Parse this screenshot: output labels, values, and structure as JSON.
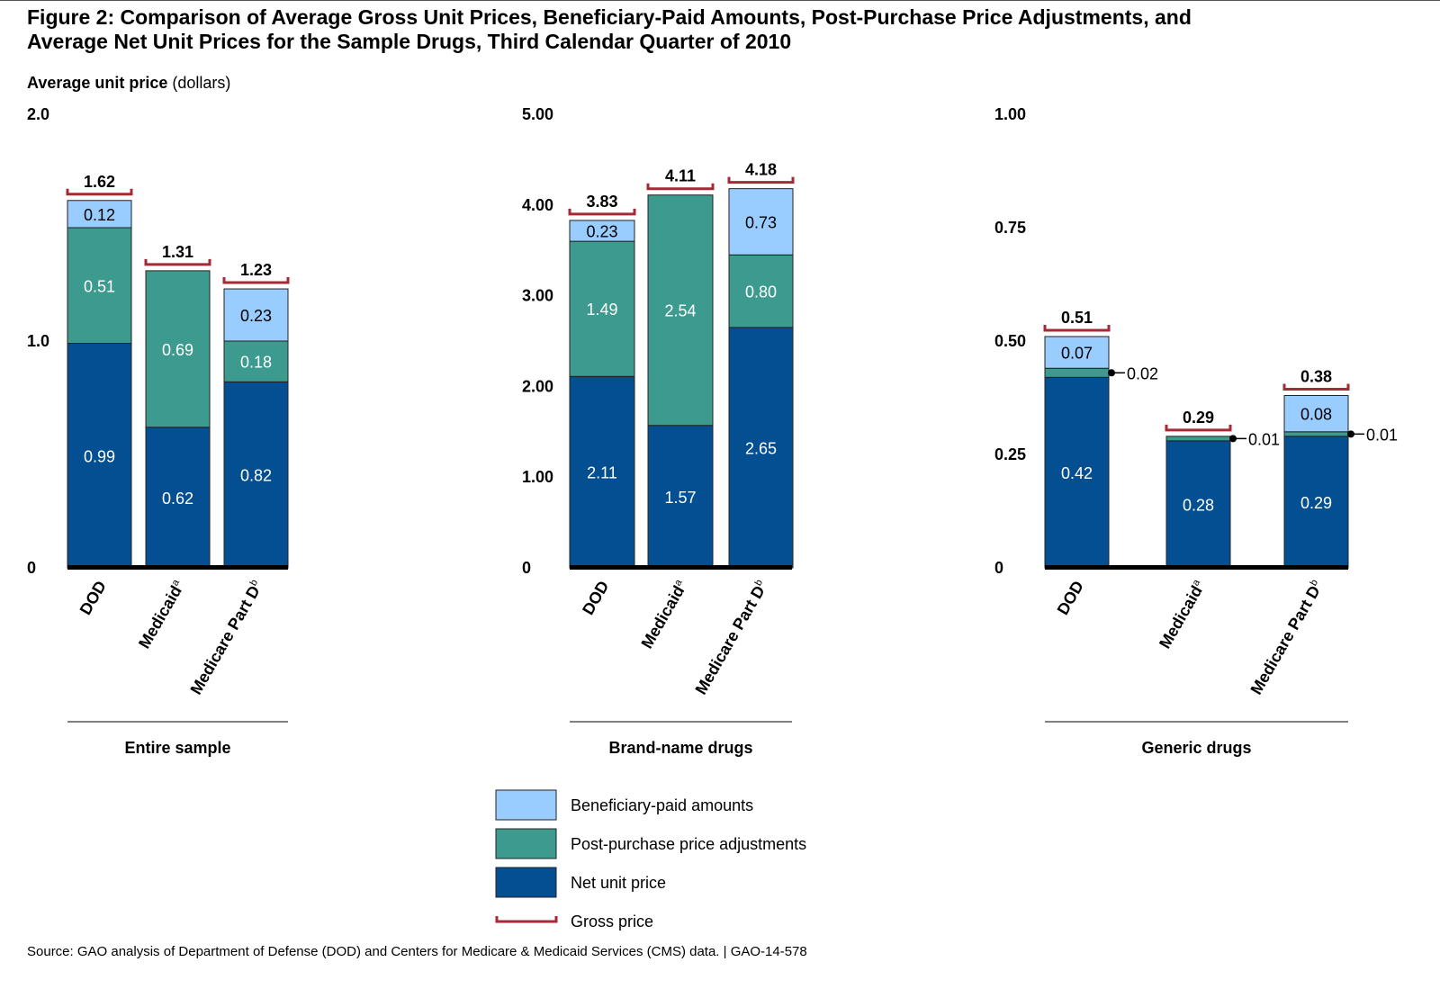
{
  "title_line1": "Figure 2: Comparison of Average Gross Unit Prices, Beneficiary-Paid Amounts, Post-Purchase Price Adjustments, and",
  "title_line2": "Average Net Unit Prices for the Sample Drugs, Third Calendar Quarter of 2010",
  "ylabel_bold": "Average unit price",
  "ylabel_unit": "(dollars)",
  "source": "Source: GAO analysis of Department of Defense (DOD) and Centers for Medicare & Medicaid Services (CMS) data.  |  GAO-14-578",
  "colors": {
    "beneficiary": "#99ccff",
    "adjustment": "#3d9a8e",
    "net": "#044f91",
    "gross": "#a52a35"
  },
  "chart_data": [
    {
      "type": "bar",
      "stacked": true,
      "title": "Entire sample",
      "ylim": [
        0,
        2.0
      ],
      "yticks": [
        "0",
        "1.0",
        "2.0"
      ],
      "ytick_values": [
        0,
        1,
        2
      ],
      "categories": [
        {
          "name": "DOD",
          "note": ""
        },
        {
          "name": "Medicaid",
          "note": "a"
        },
        {
          "name": "Medicare Part D",
          "note": "b"
        }
      ],
      "net": [
        0.99,
        0.62,
        0.82
      ],
      "net_labels": [
        "0.99",
        "0.62",
        "0.82"
      ],
      "adjustment": [
        0.51,
        0.69,
        0.18
      ],
      "adjustment_labels": [
        "0.51",
        "0.69",
        "0.18"
      ],
      "beneficiary": [
        0.12,
        0,
        0.23
      ],
      "beneficiary_labels": [
        "0.12",
        "",
        "0.23"
      ],
      "gross": [
        1.62,
        1.31,
        1.23
      ],
      "gross_labels": [
        "1.62",
        "1.31",
        "1.23"
      ],
      "callouts": [
        "",
        "",
        ""
      ]
    },
    {
      "type": "bar",
      "stacked": true,
      "title": "Brand-name drugs",
      "ylim": [
        0,
        5.0
      ],
      "yticks": [
        "0",
        "1.00",
        "2.00",
        "3.00",
        "4.00",
        "5.00"
      ],
      "ytick_values": [
        0,
        1,
        2,
        3,
        4,
        5
      ],
      "categories": [
        {
          "name": "DOD",
          "note": ""
        },
        {
          "name": "Medicaid",
          "note": "a"
        },
        {
          "name": "Medicare Part D",
          "note": "b"
        }
      ],
      "net": [
        2.11,
        1.57,
        2.65
      ],
      "net_labels": [
        "2.11",
        "1.57",
        "2.65"
      ],
      "adjustment": [
        1.49,
        2.54,
        0.8
      ],
      "adjustment_labels": [
        "1.49",
        "2.54",
        "0.80"
      ],
      "beneficiary": [
        0.23,
        0,
        0.73
      ],
      "beneficiary_labels": [
        "0.23",
        "",
        "0.73"
      ],
      "gross": [
        3.83,
        4.11,
        4.18
      ],
      "gross_labels": [
        "3.83",
        "4.11",
        "4.18"
      ],
      "callouts": [
        "",
        "",
        ""
      ]
    },
    {
      "type": "bar",
      "stacked": true,
      "title": "Generic drugs",
      "ylim": [
        0,
        1.0
      ],
      "yticks": [
        "0",
        "0.25",
        "0.50",
        "0.75",
        "1.00"
      ],
      "ytick_values": [
        0,
        0.25,
        0.5,
        0.75,
        1
      ],
      "categories": [
        {
          "name": "DOD",
          "note": ""
        },
        {
          "name": "Medicaid",
          "note": "a"
        },
        {
          "name": "Medicare Part D",
          "note": "b"
        }
      ],
      "net": [
        0.42,
        0.28,
        0.29
      ],
      "net_labels": [
        "0.42",
        "0.28",
        "0.29"
      ],
      "adjustment": [
        0.02,
        0.01,
        0.01
      ],
      "adjustment_labels": [
        "",
        "",
        ""
      ],
      "beneficiary": [
        0.07,
        0,
        0.08
      ],
      "beneficiary_labels": [
        "0.07",
        "",
        "0.08"
      ],
      "gross": [
        0.51,
        0.29,
        0.38
      ],
      "gross_labels": [
        "0.51",
        "0.29",
        "0.38"
      ],
      "callouts": [
        "0.02",
        "0.01",
        "0.01"
      ]
    }
  ],
  "legend": [
    {
      "key": "beneficiary",
      "label": "Beneficiary-paid amounts"
    },
    {
      "key": "adjustment",
      "label": "Post-purchase price adjustments"
    },
    {
      "key": "net",
      "label": "Net unit price"
    },
    {
      "key": "gross",
      "label": "Gross price"
    }
  ]
}
